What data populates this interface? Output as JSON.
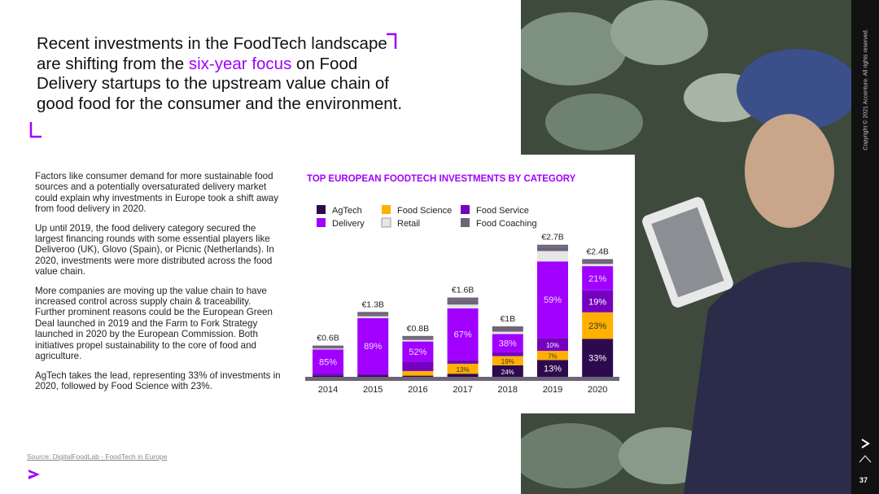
{
  "title_before": "Recent investments in the FoodTech landscape are shifting from the ",
  "title_highlight": "six-year focus",
  "title_after": " on Food Delivery startups to the upstream value chain of good food for the consumer and the environment.",
  "paragraphs": [
    "Factors like consumer demand for more sustainable food sources and a potentially oversaturated delivery market could explain why investments in Europe took a shift away from food delivery in 2020.",
    "Up until 2019, the food delivery category secured the largest financing rounds with some essential players like Deliveroo (UK), Glovo (Spain), or Picnic (Netherlands). In 2020, investments were more distributed across the food value chain.",
    "More companies are moving up the value chain to have increased control across supply chain & traceability. Further prominent reasons could be the European Green Deal launched in 2019 and the Farm to Fork Strategy launched in 2020 by the European Commission. Both initiatives propel sustainability to the core of food and agriculture.",
    "AgTech takes the lead, representing 33% of investments in 2020, followed by Food Science with 23%."
  ],
  "source": "Source: DigitalFoodLab - FoodTech in Europe",
  "copyright": "Copyright © 2021 Accenture. All rights reserved.",
  "page_number": "37",
  "chart_data": {
    "type": "stacked-bar",
    "title": "TOP EUROPEAN FOODTECH INVESTMENTS BY CATEGORY",
    "categories": [
      "2014",
      "2015",
      "2016",
      "2017",
      "2018",
      "2019",
      "2020"
    ],
    "totals": {
      "values": [
        0.6,
        1.3,
        0.8,
        1.6,
        1,
        2.7,
        2.4
      ],
      "value_labels": [
        "€0.6B",
        "€1.3B",
        "€0.8B",
        "€1.6B",
        "€1B",
        "€2.7B",
        "€2.4B"
      ]
    },
    "series": [
      {
        "name": "AgTech",
        "color": "#2d0a4e",
        "values": [
          5,
          2,
          3,
          4,
          24,
          13,
          33
        ],
        "value_labels": [
          null,
          null,
          null,
          null,
          "24%",
          "13%",
          "33%"
        ]
      },
      {
        "name": "Food Science",
        "color": "#ffb000",
        "values": [
          0,
          0,
          12,
          13,
          19,
          7,
          23
        ],
        "value_labels": [
          null,
          null,
          null,
          "13%",
          "19%",
          "7%",
          "23%"
        ]
      },
      {
        "name": "Food Service",
        "color": "#7500c0",
        "values": [
          5,
          3,
          25,
          5,
          8,
          10,
          19
        ],
        "value_labels": [
          null,
          null,
          null,
          null,
          null,
          "10%",
          "19%"
        ]
      },
      {
        "name": "Delivery",
        "color": "#a100ff",
        "values": [
          85,
          89,
          52,
          67,
          38,
          59,
          21
        ],
        "value_labels": [
          "85%",
          "89%",
          "52%",
          "67%",
          "38%",
          "59%",
          "21%"
        ]
      },
      {
        "name": "Retail",
        "color": "#e6e6e6",
        "values": [
          3,
          3,
          4,
          5,
          5,
          8,
          2
        ],
        "value_labels": [
          null,
          null,
          null,
          null,
          null,
          null,
          null
        ]
      },
      {
        "name": "Food Coaching",
        "color": "#6e6478",
        "values": [
          2,
          3,
          4,
          6,
          6,
          3,
          2
        ],
        "value_labels": [
          null,
          null,
          null,
          null,
          null,
          null,
          null
        ]
      }
    ]
  }
}
